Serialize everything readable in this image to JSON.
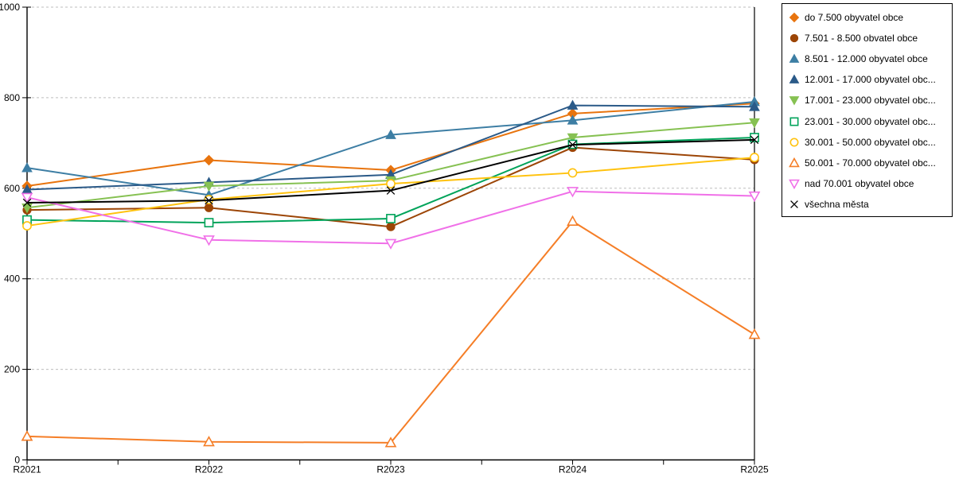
{
  "chart_data": {
    "type": "line",
    "title": "",
    "xlabel": "",
    "ylabel": "",
    "x_categories": [
      "R2021",
      "R2022",
      "R2023",
      "R2024",
      "R2025"
    ],
    "ylim": [
      0,
      1000
    ],
    "y_ticks": [
      0,
      200,
      400,
      600,
      800,
      1000
    ],
    "grid": "horizontal-dashed",
    "legend_position": "right-outside",
    "series": [
      {
        "label": "do 7.500 obyvatel obce",
        "marker": "diamond",
        "fill": "filled",
        "color": "#E8740E",
        "values": [
          605,
          662,
          640,
          765,
          787
        ]
      },
      {
        "label": "7.501 - 8.500 obvatel obce",
        "marker": "circle",
        "fill": "filled",
        "color": "#9C4506",
        "values": [
          552,
          557,
          515,
          690,
          663
        ]
      },
      {
        "label": "8.501 - 12.000 obyvatel obce",
        "marker": "triangle-up",
        "fill": "filled",
        "color": "#3D7EA4",
        "values": [
          645,
          585,
          718,
          750,
          791
        ]
      },
      {
        "label": "12.001 - 17.000 obyvatel obc...",
        "marker": "triangle-up",
        "fill": "filled",
        "color": "#2B5A88",
        "values": [
          597,
          613,
          630,
          783,
          780
        ]
      },
      {
        "label": "17.001 - 23.000 obyvatel obc...",
        "marker": "triangle-down",
        "fill": "filled",
        "color": "#86C152",
        "values": [
          557,
          605,
          617,
          712,
          745
        ]
      },
      {
        "label": "23.001 - 30.000 obyvatel obc...",
        "marker": "square",
        "fill": "open",
        "color": "#00A35A",
        "values": [
          530,
          524,
          533,
          697,
          712
        ]
      },
      {
        "label": "30.001 - 50.000 obyvatel obc...",
        "marker": "circle",
        "fill": "open",
        "color": "#FFC20E",
        "values": [
          517,
          575,
          610,
          634,
          668
        ]
      },
      {
        "label": "50.001 - 70.000 obyvatel obc...",
        "marker": "triangle-up",
        "fill": "open",
        "color": "#F57E27",
        "values": [
          52,
          40,
          38,
          527,
          277
        ]
      },
      {
        "label": "nad 70.001 obyvatel obce",
        "marker": "triangle-down",
        "fill": "open",
        "color": "#F070E8",
        "values": [
          580,
          486,
          478,
          593,
          583
        ]
      },
      {
        "label": "všechna města",
        "marker": "x",
        "fill": "line",
        "color": "#000000",
        "values": [
          568,
          573,
          595,
          696,
          707
        ]
      }
    ],
    "colors": {
      "gridline": "#BDBDBD",
      "axis": "#000000",
      "legend_border": "#000000"
    }
  }
}
